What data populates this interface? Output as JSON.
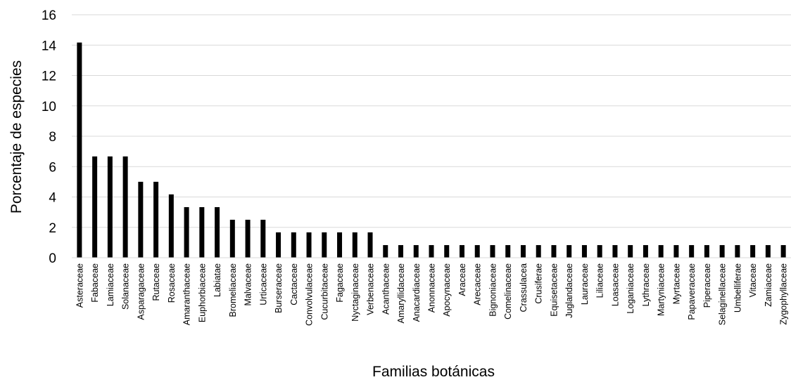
{
  "chart_data": {
    "type": "bar",
    "xlabel": "Familias botánicas",
    "ylabel": "Porcentaje de especies",
    "ylim": [
      0,
      16
    ],
    "yticks": [
      0,
      2,
      4,
      6,
      8,
      10,
      12,
      14,
      16
    ],
    "grid": true,
    "bar_color": "#000000",
    "grid_color": "#d9d9d9",
    "categories": [
      "Asteraceae",
      "Fabaceae",
      "Lamiaceae",
      "Solanaceae",
      "Asparagaceae",
      "Rutaceae",
      "Rosaceae",
      "Amaranthaceae",
      "Euphorbiaceae",
      "Labiatae",
      "Bromeliaceae",
      "Malvaceae",
      "Urticaceae",
      "Burseraceae",
      "Cactaceae",
      "Convolvulaceae",
      "Cucurbitaceae",
      "Fagaceae",
      "Nyctaginaceae",
      "Verbenaceae",
      "Acanthaceae",
      "Amaryllidaceae",
      "Anacardiaceae",
      "Anonnaceae",
      "Apocynaceae",
      "Araceae",
      "Arecaceae",
      "Bignoniaceae",
      "Comelinaceae",
      "Crassulacea",
      "Crusiferae",
      "Equisetaceae",
      "Juglandaceae",
      "Lauraceae",
      "Liliaceae",
      "Loasaceae",
      "Loganiaceae",
      "Lythraceae",
      "Martyniaceae",
      "Myrtaceae",
      "Papaveraceae",
      "Piperaceae",
      "Selaginellaceae",
      "Umbelliferae",
      "Vitaceae",
      "Zamiaceae",
      "Zygophyllaceae"
    ],
    "values": [
      14.17,
      6.67,
      6.67,
      6.67,
      5.0,
      5.0,
      4.17,
      3.33,
      3.33,
      3.33,
      2.5,
      2.5,
      2.5,
      1.67,
      1.67,
      1.67,
      1.67,
      1.67,
      1.67,
      1.67,
      0.83,
      0.83,
      0.83,
      0.83,
      0.83,
      0.83,
      0.83,
      0.83,
      0.83,
      0.83,
      0.83,
      0.83,
      0.83,
      0.83,
      0.83,
      0.83,
      0.83,
      0.83,
      0.83,
      0.83,
      0.83,
      0.83,
      0.83,
      0.83,
      0.83,
      0.83,
      0.83
    ]
  }
}
